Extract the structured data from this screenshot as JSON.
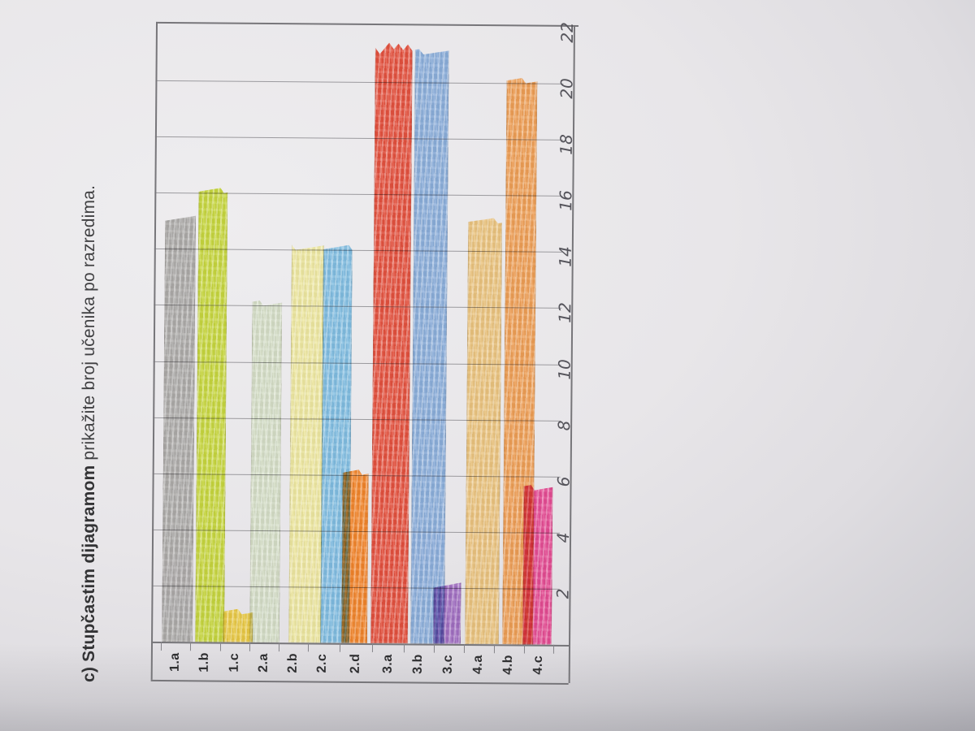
{
  "page": {
    "title_bold": "c) Stupčastim dijagramom",
    "title_rest": " prikažite broj učenika po razredima."
  },
  "chart_data": {
    "type": "bar",
    "title": "c) Stupčastim dijagramom prikažite broj učenika po razredima.",
    "categories": [
      "1.a",
      "1.b",
      "1.c",
      "2.a",
      "2.b",
      "2.c",
      "2.d",
      "3.a",
      "3.b",
      "3.c",
      "4.a",
      "4.b",
      "4.c"
    ],
    "values": [
      15,
      16,
      1,
      12,
      14,
      14,
      6,
      21,
      21,
      2,
      15,
      20,
      5.5
    ],
    "bar_colors": [
      "#a8a6a4",
      "#c6d730",
      "#ecc937",
      "#d5dfc5",
      "#f1ea9c",
      "#79bbe3",
      "#f57d1a",
      "#e64530",
      "#84aadb",
      "#9c64c0",
      "#edc276",
      "#f19a4a",
      "#e73f8d"
    ],
    "value_ticks": [
      2,
      4,
      6,
      8,
      10,
      12,
      14,
      16,
      18,
      20,
      22
    ],
    "ylim": [
      0,
      22
    ],
    "grid": true,
    "legend": false,
    "layout_note": "hand-drawn colored-pencil column chart photographed rotated 90° CCW: category labels along bottom edge, handwritten value axis on right edge, bars rise from baseline; pencil gridlines every 2 units"
  }
}
